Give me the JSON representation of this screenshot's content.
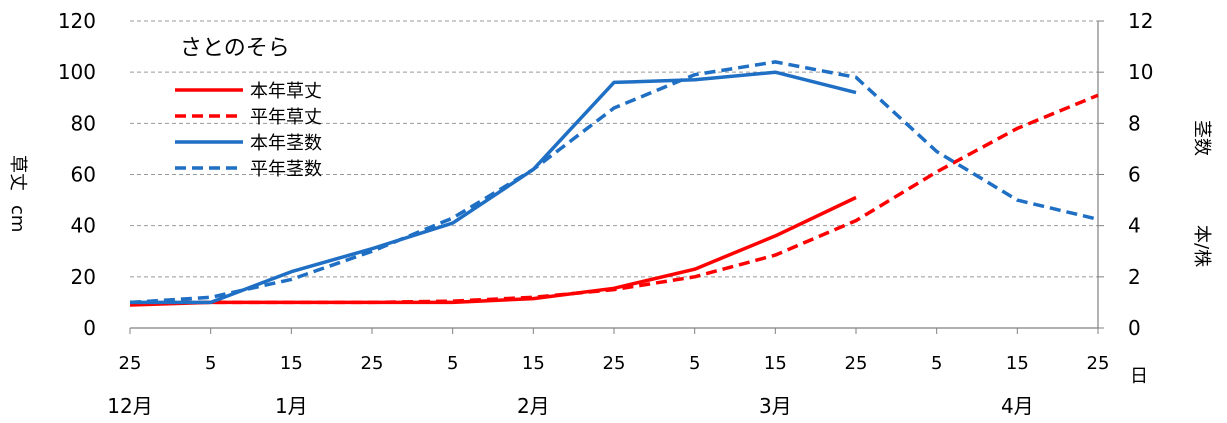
{
  "chart_data": {
    "type": "line",
    "legend": {
      "title": "さとのそら",
      "placement": "top-left",
      "entries": [
        "本年草丈",
        "平年草丈",
        "本年茎数",
        "平年茎数"
      ]
    },
    "y_left": {
      "label": [
        "草丈",
        "cm"
      ],
      "range": [
        0,
        120
      ],
      "ticks": [
        0,
        20,
        40,
        60,
        80,
        100,
        120
      ]
    },
    "y_right": {
      "label": [
        "茎数",
        "本/株"
      ],
      "range": [
        0,
        12
      ],
      "ticks": [
        0,
        2,
        4,
        6,
        8,
        10,
        12
      ]
    },
    "x_axis": {
      "day_ticks": [
        "25",
        "5",
        "15",
        "25",
        "5",
        "15",
        "25",
        "5",
        "15",
        "25",
        "5",
        "15",
        "25"
      ],
      "day_unit": "日",
      "months": [
        {
          "label": "12月",
          "tick": 0
        },
        {
          "label": "1月",
          "tick": 2
        },
        {
          "label": "2月",
          "tick": 5
        },
        {
          "label": "3月",
          "tick": 8
        },
        {
          "label": "4月",
          "tick": 11
        }
      ]
    },
    "grid": true,
    "series": [
      {
        "name": "本年草丈",
        "axis": "left",
        "color": "#ff0000",
        "dash": false,
        "points": [
          [
            0,
            9
          ],
          [
            1,
            10
          ],
          [
            2,
            10
          ],
          [
            3,
            10
          ],
          [
            4,
            10
          ],
          [
            5,
            11.5
          ],
          [
            6,
            15.5
          ],
          [
            7,
            23
          ],
          [
            8,
            36
          ],
          [
            9,
            51
          ]
        ]
      },
      {
        "name": "平年草丈",
        "axis": "left",
        "color": "#ff0000",
        "dash": true,
        "points": [
          [
            0,
            10
          ],
          [
            1,
            10
          ],
          [
            2,
            10
          ],
          [
            3,
            10
          ],
          [
            4,
            10.5
          ],
          [
            5,
            12
          ],
          [
            6,
            15
          ],
          [
            7,
            20
          ],
          [
            8,
            28.5
          ],
          [
            9,
            42
          ],
          [
            10,
            61
          ],
          [
            11,
            78
          ],
          [
            12,
            91
          ]
        ]
      },
      {
        "name": "本年茎数",
        "axis": "right",
        "color": "#1f6fc4",
        "dash": false,
        "points": [
          [
            0,
            1.0
          ],
          [
            1,
            1.0
          ],
          [
            2,
            2.2
          ],
          [
            3,
            3.1
          ],
          [
            4,
            4.1
          ],
          [
            5,
            6.2
          ],
          [
            6,
            9.6
          ],
          [
            7,
            9.7
          ],
          [
            8,
            10.0
          ],
          [
            9,
            9.2
          ]
        ]
      },
      {
        "name": "平年茎数",
        "axis": "right",
        "color": "#1f6fc4",
        "dash": true,
        "points": [
          [
            0,
            1.0
          ],
          [
            1,
            1.2
          ],
          [
            2,
            1.9
          ],
          [
            3,
            3.0
          ],
          [
            4,
            4.3
          ],
          [
            5,
            6.2
          ],
          [
            6,
            8.6
          ],
          [
            7,
            9.9
          ],
          [
            8,
            10.4
          ],
          [
            9,
            9.8
          ],
          [
            10,
            6.9
          ],
          [
            11,
            5.0
          ],
          [
            12,
            4.25
          ]
        ]
      }
    ]
  }
}
